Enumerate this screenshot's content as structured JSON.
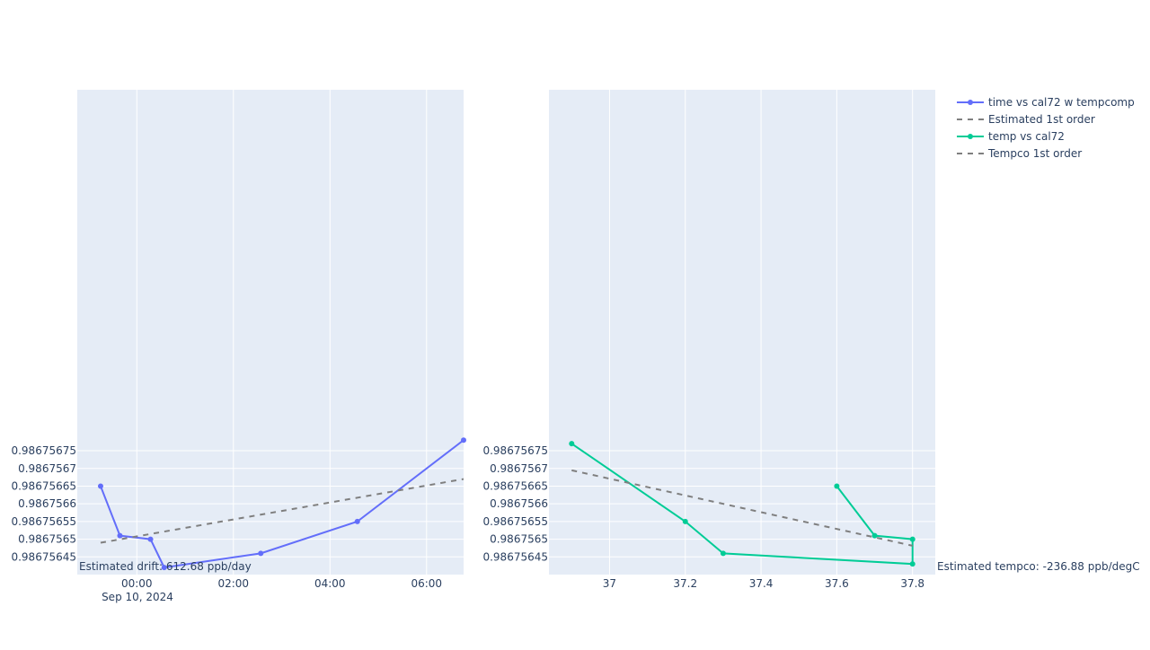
{
  "chart_data": [
    {
      "type": "line",
      "x_type": "time",
      "x_tick_labels": [
        "00:00",
        "02:00",
        "04:00",
        "06:00"
      ],
      "x_tick_values": [
        "2024-09-10T00:00",
        "2024-09-10T02:00",
        "2024-09-10T04:00",
        "2024-09-10T06:00"
      ],
      "x_subtitle": "Sep 10, 2024",
      "xlim": [
        "2024-09-09T22:46",
        "2024-09-10T06:46"
      ],
      "ylim": [
        0.9867564,
        0.98675777
      ],
      "y_tick_values": [
        0.98675645,
        0.9867565,
        0.98675655,
        0.9867566,
        0.98675665,
        0.9867567,
        0.98675675
      ],
      "y_tick_labels": [
        "0.98675645",
        "0.9867565",
        "0.98675655",
        "0.9867566",
        "0.98675665",
        "0.9867567",
        "0.98675675"
      ],
      "grid": true,
      "series": [
        {
          "name": "time vs cal72 w tempcomp",
          "color": "#636efa",
          "mode": "lines+markers",
          "x": [
            "2024-09-09T23:15",
            "2024-09-09T23:39",
            "2024-09-10T00:17",
            "2024-09-10T00:34",
            "2024-09-10T02:34",
            "2024-09-10T04:34",
            "2024-09-10T06:46"
          ],
          "y": [
            0.98675665,
            0.98675651,
            0.9867565,
            0.98675642,
            0.98675646,
            0.98675655,
            0.98675678
          ]
        },
        {
          "name": "Estimated 1st order",
          "color": "#7f7f7f",
          "dash": "dash",
          "x": [
            "2024-09-09T23:15",
            "2024-09-10T06:46"
          ],
          "y": [
            0.98675649,
            0.98675667
          ]
        }
      ],
      "annotation": "Estimated drift:  612.68 ppb/day"
    },
    {
      "type": "line",
      "xlim": [
        36.84,
        37.86
      ],
      "ylim": [
        0.9867564,
        0.98675777
      ],
      "x_tick_values": [
        37,
        37.2,
        37.4,
        37.6,
        37.8
      ],
      "x_tick_labels": [
        "37",
        "37.2",
        "37.4",
        "37.6",
        "37.8"
      ],
      "y_tick_values": [
        0.98675645,
        0.9867565,
        0.98675655,
        0.9867566,
        0.98675665,
        0.9867567,
        0.98675675
      ],
      "y_tick_labels": [
        "0.98675645",
        "0.9867565",
        "0.98675655",
        "0.9867566",
        "0.98675665",
        "0.9867567",
        "0.98675675"
      ],
      "grid": true,
      "series": [
        {
          "name": "temp vs cal72",
          "color": "#00cc96",
          "mode": "lines+markers",
          "x": [
            36.9,
            37.2,
            37.3,
            37.8,
            37.8,
            37.7,
            37.6
          ],
          "y": [
            0.98675677,
            0.98675655,
            0.98675646,
            0.98675643,
            0.9867565,
            0.98675651,
            0.98675665
          ]
        },
        {
          "name": "Tempco 1st order",
          "color": "#7f7f7f",
          "dash": "dash",
          "x": [
            36.9,
            37.8
          ],
          "y": [
            0.9867566947,
            0.9867564816
          ]
        }
      ],
      "annotation": "Estimated tempco:  -236.88 ppb/degC"
    }
  ],
  "legend": {
    "placement": "top-right",
    "items": [
      {
        "label": "time vs cal72 w tempcomp",
        "color": "#636efa",
        "style": "line-marker"
      },
      {
        "label": "Estimated 1st order",
        "color": "#7f7f7f",
        "style": "dash"
      },
      {
        "label": "temp vs cal72",
        "color": "#00cc96",
        "style": "line-marker"
      },
      {
        "label": "Tempco 1st order",
        "color": "#7f7f7f",
        "style": "dash"
      }
    ]
  },
  "colors": {
    "plot_bg": "#e5ecf6",
    "grid": "#ffffff",
    "text": "#2a3f5f"
  }
}
